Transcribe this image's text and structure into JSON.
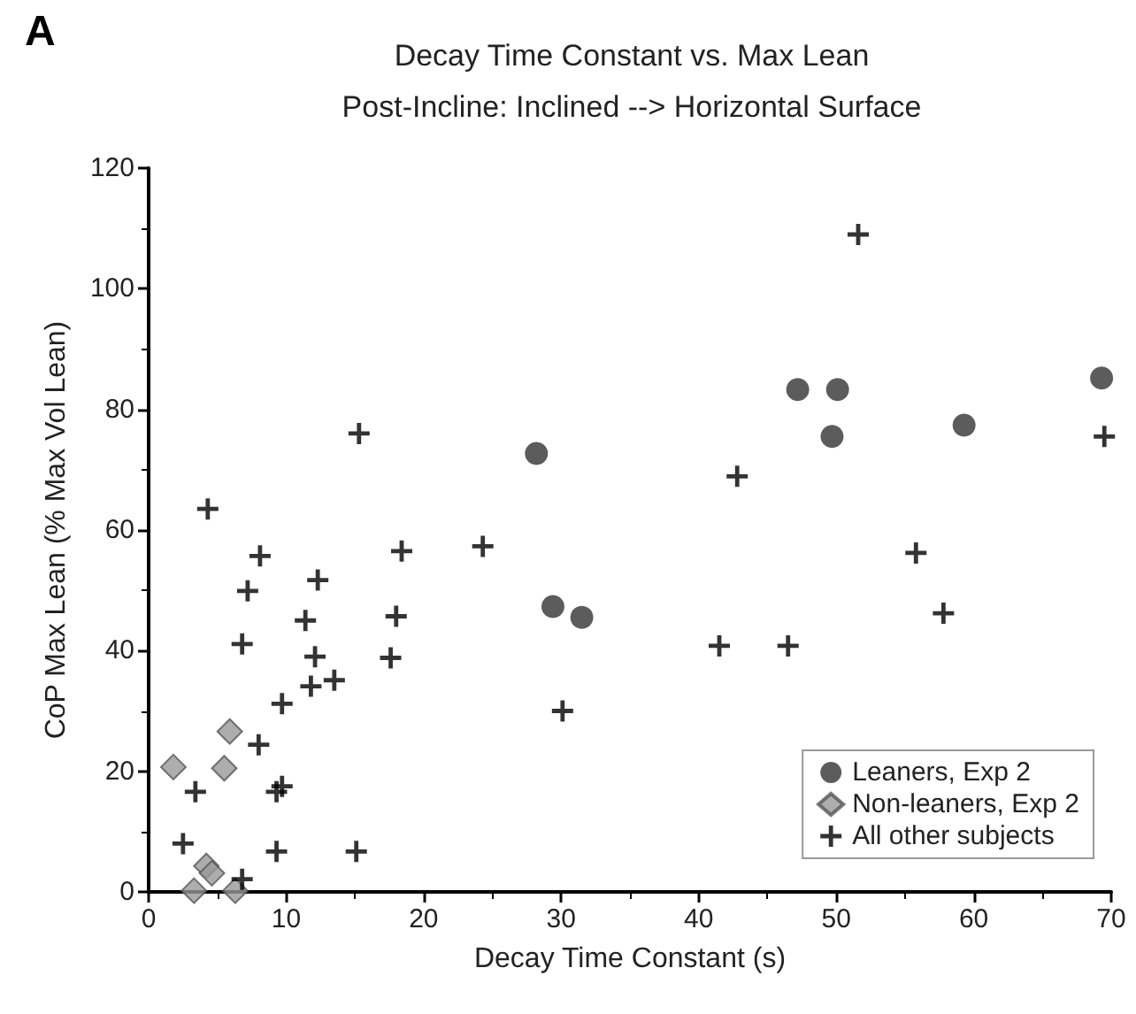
{
  "chart_data": {
    "type": "scatter",
    "title": "Decay Time Constant vs. Max Lean",
    "subtitle": "Post-Incline: Inclined --> Horizontal Surface",
    "xlabel": "Decay Time Constant (s)",
    "ylabel": "CoP Max Lean (% Max Vol Lean)",
    "annotations": [
      "A"
    ],
    "xlim": [
      0,
      70
    ],
    "xticks": [
      0,
      10,
      20,
      30,
      40,
      50,
      60,
      70
    ],
    "ylim": [
      0,
      120
    ],
    "yticks": [
      0,
      20,
      40,
      60,
      80,
      100,
      120
    ],
    "grid": false,
    "legend": "bottom right",
    "series": [
      {
        "name": "Leaners, Exp 2",
        "color": "#333333",
        "marker": "circle",
        "x": [
          28.2,
          29.4,
          31.5,
          47.2,
          50.1,
          49.7,
          59.3,
          69.3
        ],
        "values": [
          72.7,
          47.3,
          45.5,
          83.3,
          83.3,
          75.5,
          77.4,
          85.2
        ]
      },
      {
        "name": "Non-leaners, Exp 2",
        "color": "#999999",
        "marker": "diamond",
        "x": [
          1.8,
          5.9,
          5.5,
          4.2,
          4.6,
          3.3,
          6.3
        ],
        "values": [
          20.7,
          26.6,
          20.5,
          4.3,
          3.1,
          0.2,
          0.2
        ]
      },
      {
        "name": "All other subjects",
        "color": "#000000",
        "marker": "cross",
        "x": [
          15.3,
          4.3,
          8.1,
          7.2,
          12.3,
          11.4,
          18.4,
          18.0,
          24.3,
          6.8,
          12.1,
          17.6,
          11.8,
          13.5,
          9.7,
          30.1,
          8.0,
          3.4,
          9.3,
          9.7,
          2.5,
          9.3,
          15.1,
          6.8,
          51.6,
          42.8,
          69.5,
          55.8,
          57.8,
          41.5,
          46.5
        ],
        "values": [
          76.0,
          63.5,
          55.7,
          49.9,
          51.7,
          45.0,
          56.5,
          45.7,
          57.3,
          41.1,
          39.0,
          38.8,
          34.1,
          35.1,
          31.2,
          30.0,
          24.4,
          16.6,
          16.6,
          17.5,
          8.0,
          6.7,
          6.7,
          2.1,
          109.0,
          68.9,
          75.5,
          56.2,
          46.2,
          40.8,
          40.8
        ]
      }
    ]
  }
}
